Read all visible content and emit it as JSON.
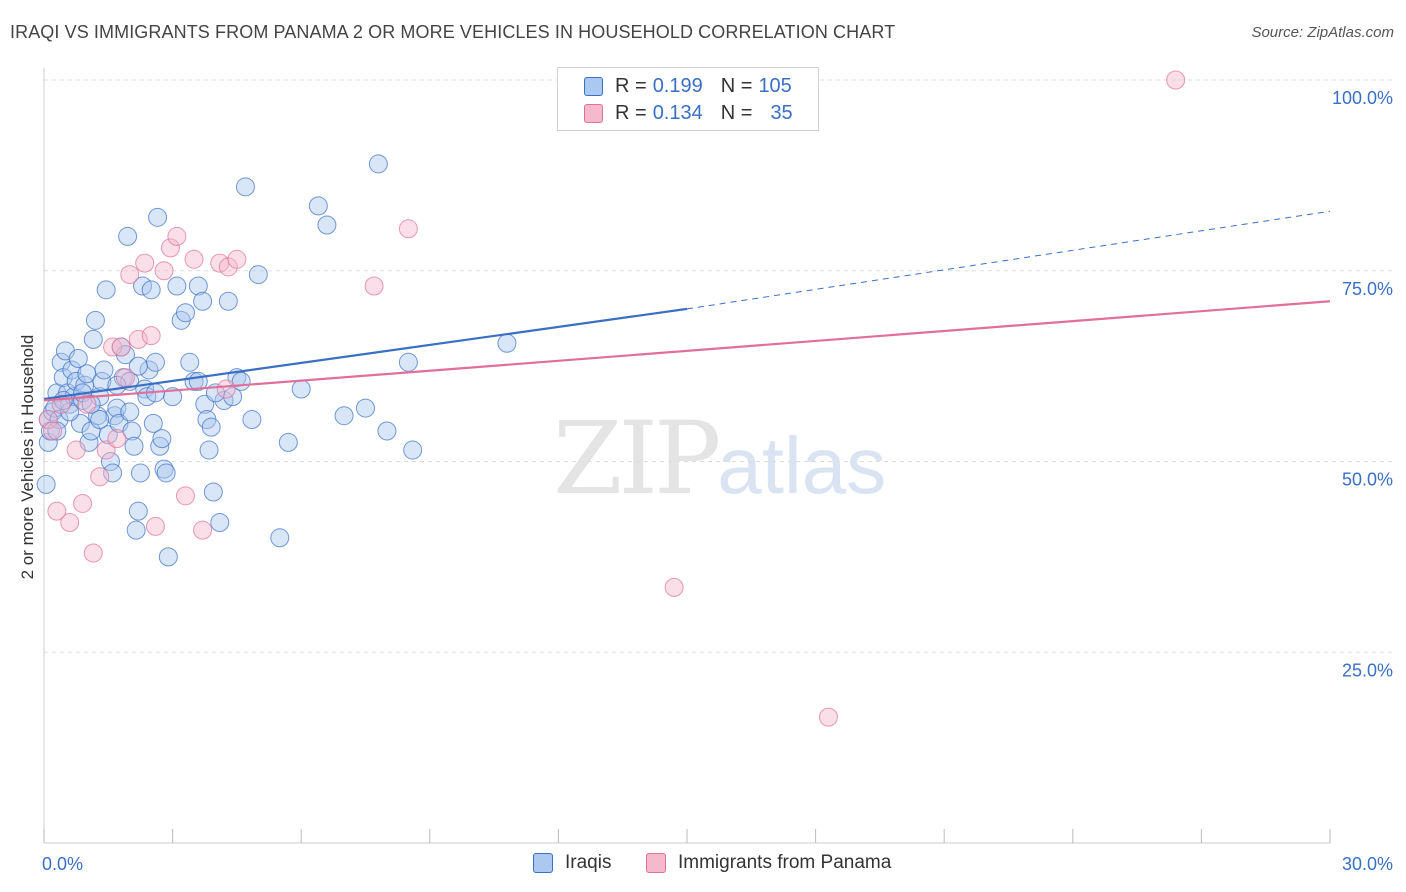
{
  "title": "IRAQI VS IMMIGRANTS FROM PANAMA 2 OR MORE VEHICLES IN HOUSEHOLD CORRELATION CHART",
  "source": "Source: ZipAtlas.com",
  "watermark": {
    "zip": "ZIP",
    "atlas": "atlas"
  },
  "colors": {
    "blue": "#3a6fc4",
    "blue_fill": "#aac8f0",
    "pink": "#e06f99",
    "pink_fill": "#f5b9cc",
    "grid": "#dddddd"
  },
  "legend_top": {
    "rows": [
      {
        "r_label": "R =",
        "r_value": "0.199",
        "n_label": "N =",
        "n_value": "105",
        "color": "blue"
      },
      {
        "r_label": "R =",
        "r_value": "0.134",
        "n_label": "N =",
        "n_value": "35",
        "color": "pink"
      }
    ]
  },
  "legend_bottom": [
    {
      "label": "Iraqis",
      "color": "blue"
    },
    {
      "label": "Immigrants from Panama",
      "color": "pink"
    }
  ],
  "chart_data": {
    "type": "scatter",
    "title": "IRAQI VS IMMIGRANTS FROM PANAMA 2 OR MORE VEHICLES IN HOUSEHOLD CORRELATION CHART",
    "xlabel": "",
    "ylabel": "2 or more Vehicles in Household",
    "xlim": [
      0,
      30
    ],
    "ylim": [
      0,
      100
    ],
    "x_tick_labels": [
      "0.0%",
      "30.0%"
    ],
    "y_tick_labels": [
      {
        "value": 100,
        "label": "100.0%"
      },
      {
        "value": 75,
        "label": "75.0%"
      },
      {
        "value": 50,
        "label": "50.0%"
      },
      {
        "value": 25,
        "label": "25.0%"
      }
    ],
    "grid": true,
    "legend_position": "top-center",
    "series": [
      {
        "name": "Iraqis",
        "color": "blue",
        "trend": {
          "x": [
            0,
            15
          ],
          "y": [
            58.2,
            70.0
          ],
          "dashed_to": [
            30,
            82.8
          ]
        },
        "points": [
          [
            0.05,
            47.0
          ],
          [
            0.1,
            55.5
          ],
          [
            0.1,
            52.5
          ],
          [
            0.15,
            54.0
          ],
          [
            0.2,
            56.5
          ],
          [
            0.25,
            57.0
          ],
          [
            0.3,
            59.0
          ],
          [
            0.35,
            55.5
          ],
          [
            0.4,
            63.0
          ],
          [
            0.45,
            61.0
          ],
          [
            0.5,
            64.5
          ],
          [
            0.55,
            59.0
          ],
          [
            0.6,
            57.5
          ],
          [
            0.65,
            62.0
          ],
          [
            0.7,
            58.5
          ],
          [
            0.75,
            60.5
          ],
          [
            0.8,
            63.5
          ],
          [
            0.85,
            55.0
          ],
          [
            0.9,
            58.0
          ],
          [
            0.95,
            60.0
          ],
          [
            1.0,
            61.5
          ],
          [
            1.05,
            52.5
          ],
          [
            1.1,
            54.0
          ],
          [
            1.15,
            66.0
          ],
          [
            1.2,
            68.5
          ],
          [
            1.25,
            56.0
          ],
          [
            1.3,
            58.5
          ],
          [
            1.35,
            60.5
          ],
          [
            1.4,
            62.0
          ],
          [
            1.45,
            72.5
          ],
          [
            1.5,
            53.5
          ],
          [
            1.55,
            50.0
          ],
          [
            1.6,
            48.5
          ],
          [
            1.65,
            56.0
          ],
          [
            1.7,
            57.0
          ],
          [
            1.75,
            55.0
          ],
          [
            1.8,
            65.0
          ],
          [
            1.85,
            61.0
          ],
          [
            1.9,
            64.0
          ],
          [
            1.95,
            79.5
          ],
          [
            2.0,
            60.5
          ],
          [
            2.05,
            54.0
          ],
          [
            2.1,
            52.0
          ],
          [
            2.15,
            41.0
          ],
          [
            2.2,
            43.5
          ],
          [
            2.25,
            48.5
          ],
          [
            2.3,
            73.0
          ],
          [
            2.35,
            59.5
          ],
          [
            2.4,
            58.5
          ],
          [
            2.45,
            62.0
          ],
          [
            2.5,
            72.5
          ],
          [
            2.55,
            55.0
          ],
          [
            2.6,
            63.0
          ],
          [
            2.65,
            82.0
          ],
          [
            2.7,
            52.0
          ],
          [
            2.75,
            53.0
          ],
          [
            2.8,
            49.0
          ],
          [
            2.85,
            48.5
          ],
          [
            2.9,
            37.5
          ],
          [
            3.0,
            58.5
          ],
          [
            3.1,
            73.0
          ],
          [
            3.2,
            68.5
          ],
          [
            3.3,
            69.5
          ],
          [
            3.4,
            63.0
          ],
          [
            3.5,
            60.5
          ],
          [
            3.6,
            73.0
          ],
          [
            3.7,
            71.0
          ],
          [
            3.75,
            57.5
          ],
          [
            3.8,
            55.5
          ],
          [
            3.85,
            51.5
          ],
          [
            3.9,
            54.5
          ],
          [
            3.95,
            46.0
          ],
          [
            4.1,
            42.0
          ],
          [
            4.2,
            58.0
          ],
          [
            4.3,
            71.0
          ],
          [
            4.4,
            58.5
          ],
          [
            4.5,
            61.0
          ],
          [
            4.6,
            60.5
          ],
          [
            4.7,
            86.0
          ],
          [
            4.85,
            55.5
          ],
          [
            5.0,
            74.5
          ],
          [
            5.5,
            40.0
          ],
          [
            5.7,
            52.5
          ],
          [
            6.0,
            59.5
          ],
          [
            6.4,
            83.5
          ],
          [
            6.6,
            81.0
          ],
          [
            7.0,
            56.0
          ],
          [
            7.5,
            57.0
          ],
          [
            7.8,
            89.0
          ],
          [
            8.0,
            54.0
          ],
          [
            8.5,
            63.0
          ],
          [
            8.6,
            51.5
          ],
          [
            10.8,
            65.5
          ],
          [
            0.3,
            54.0
          ],
          [
            0.6,
            56.5
          ],
          [
            0.9,
            59.0
          ],
          [
            1.1,
            57.5
          ],
          [
            1.7,
            60.0
          ],
          [
            2.0,
            56.5
          ],
          [
            2.6,
            59.0
          ],
          [
            3.6,
            60.5
          ],
          [
            4.0,
            59.0
          ],
          [
            1.3,
            55.5
          ],
          [
            0.45,
            58.0
          ],
          [
            2.2,
            62.5
          ]
        ]
      },
      {
        "name": "Immigrants from Panama",
        "color": "pink",
        "trend": {
          "x": [
            0,
            30
          ],
          "y": [
            58.0,
            71.0
          ]
        },
        "points": [
          [
            0.1,
            55.5
          ],
          [
            0.2,
            54.0
          ],
          [
            0.3,
            43.5
          ],
          [
            0.4,
            57.5
          ],
          [
            0.6,
            42.0
          ],
          [
            0.75,
            51.5
          ],
          [
            0.9,
            44.5
          ],
          [
            1.0,
            57.5
          ],
          [
            1.15,
            38.0
          ],
          [
            1.3,
            48.0
          ],
          [
            1.45,
            51.5
          ],
          [
            1.6,
            65.0
          ],
          [
            1.7,
            53.0
          ],
          [
            1.8,
            65.0
          ],
          [
            1.9,
            61.0
          ],
          [
            2.0,
            74.5
          ],
          [
            2.2,
            66.0
          ],
          [
            2.35,
            76.0
          ],
          [
            2.5,
            66.5
          ],
          [
            2.6,
            41.5
          ],
          [
            2.8,
            75.0
          ],
          [
            2.95,
            78.0
          ],
          [
            3.1,
            79.5
          ],
          [
            3.3,
            45.5
          ],
          [
            3.5,
            76.5
          ],
          [
            3.7,
            41.0
          ],
          [
            4.1,
            76.0
          ],
          [
            4.3,
            75.5
          ],
          [
            4.5,
            76.5
          ],
          [
            4.25,
            59.5
          ],
          [
            7.7,
            73.0
          ],
          [
            8.5,
            80.5
          ],
          [
            14.7,
            33.5
          ],
          [
            18.3,
            16.5
          ],
          [
            26.4,
            100.0
          ]
        ]
      }
    ]
  }
}
